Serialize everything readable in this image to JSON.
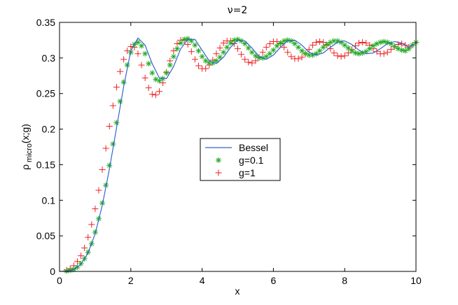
{
  "chart_data": {
    "type": "line",
    "title": "ν=2",
    "xlabel": "x",
    "ylabel": "ρ",
    "ylabel_sub": "micro",
    "ylabel_suffix": "(x;g)",
    "xlim": [
      0,
      10
    ],
    "ylim": [
      0,
      0.35
    ],
    "xticks": [
      0,
      2,
      4,
      6,
      8,
      10
    ],
    "xtick_labels": [
      "0",
      "2",
      "4",
      "6",
      "8",
      "10"
    ],
    "yticks": [
      0,
      0.05,
      0.1,
      0.15,
      0.2,
      0.25,
      0.3,
      0.35
    ],
    "ytick_labels": [
      "0",
      "0.05",
      "0.1",
      "0.15",
      "0.2",
      "0.25",
      "0.3",
      "0.35"
    ],
    "grid": false,
    "legend_position": "center",
    "series": [
      {
        "name": "Bessel",
        "style": "line",
        "color": "#3366cc",
        "x": [
          0.0,
          0.2,
          0.4,
          0.6,
          0.8,
          1.0,
          1.2,
          1.4,
          1.6,
          1.8,
          2.0,
          2.2,
          2.4,
          2.6,
          2.8,
          3.0,
          3.2,
          3.4,
          3.6,
          3.8,
          4.0,
          4.2,
          4.4,
          4.6,
          4.8,
          5.0,
          5.2,
          5.4,
          5.6,
          5.8,
          6.0,
          6.2,
          6.4,
          6.6,
          6.8,
          7.0,
          7.2,
          7.4,
          7.6,
          7.8,
          8.0,
          8.2,
          8.4,
          8.6,
          8.8,
          9.0,
          9.2,
          9.4,
          9.6,
          9.8,
          10.0
        ],
        "values": [
          0.0,
          0.0004,
          0.0025,
          0.01,
          0.026,
          0.053,
          0.093,
          0.144,
          0.202,
          0.26,
          0.31,
          0.328,
          0.318,
          0.292,
          0.272,
          0.271,
          0.288,
          0.313,
          0.326,
          0.326,
          0.311,
          0.296,
          0.292,
          0.301,
          0.315,
          0.325,
          0.324,
          0.314,
          0.302,
          0.298,
          0.304,
          0.315,
          0.324,
          0.325,
          0.318,
          0.308,
          0.304,
          0.307,
          0.315,
          0.322,
          0.324,
          0.319,
          0.311,
          0.306,
          0.307,
          0.313,
          0.32,
          0.323,
          0.321,
          0.315,
          0.321
        ]
      },
      {
        "name": "g=0.1",
        "style": "marker-asterisk",
        "color": "#22aa22",
        "x": [
          0.2,
          0.3,
          0.4,
          0.5,
          0.6,
          0.7,
          0.8,
          0.9,
          1.0,
          1.1,
          1.2,
          1.3,
          1.4,
          1.5,
          1.6,
          1.7,
          1.8,
          1.9,
          2.0,
          2.1,
          2.2,
          2.3,
          2.4,
          2.5,
          2.6,
          2.7,
          2.8,
          2.9,
          3.0,
          3.1,
          3.2,
          3.3,
          3.4,
          3.5,
          3.6,
          3.7,
          3.8,
          3.9,
          4.0,
          4.1,
          4.2,
          4.3,
          4.4,
          4.5,
          4.6,
          4.7,
          4.8,
          4.9,
          5.0,
          5.1,
          5.2,
          5.3,
          5.4,
          5.5,
          5.6,
          5.7,
          5.8,
          5.9,
          6.0,
          6.1,
          6.2,
          6.3,
          6.4,
          6.5,
          6.6,
          6.7,
          6.8,
          6.9,
          7.0,
          7.1,
          7.2,
          7.3,
          7.4,
          7.5,
          7.6,
          7.7,
          7.8,
          7.9,
          8.0,
          8.1,
          8.2,
          8.3,
          8.4,
          8.5,
          8.6,
          8.7,
          8.8,
          8.9,
          9.0,
          9.1,
          9.2,
          9.3,
          9.4,
          9.5,
          9.6,
          9.7,
          9.8,
          9.9,
          10.0
        ],
        "values": [
          0.0006,
          0.0015,
          0.003,
          0.006,
          0.011,
          0.018,
          0.027,
          0.039,
          0.055,
          0.074,
          0.096,
          0.121,
          0.149,
          0.179,
          0.209,
          0.239,
          0.266,
          0.29,
          0.308,
          0.319,
          0.322,
          0.317,
          0.306,
          0.292,
          0.279,
          0.27,
          0.268,
          0.271,
          0.279,
          0.29,
          0.302,
          0.313,
          0.321,
          0.326,
          0.327,
          0.324,
          0.318,
          0.31,
          0.302,
          0.296,
          0.293,
          0.293,
          0.296,
          0.301,
          0.308,
          0.315,
          0.321,
          0.325,
          0.326,
          0.324,
          0.32,
          0.314,
          0.308,
          0.303,
          0.3,
          0.3,
          0.302,
          0.306,
          0.311,
          0.317,
          0.321,
          0.324,
          0.325,
          0.324,
          0.32,
          0.315,
          0.31,
          0.306,
          0.304,
          0.304,
          0.306,
          0.31,
          0.315,
          0.319,
          0.322,
          0.324,
          0.324,
          0.322,
          0.318,
          0.314,
          0.31,
          0.307,
          0.306,
          0.307,
          0.309,
          0.313,
          0.317,
          0.32,
          0.322,
          0.323,
          0.322,
          0.32,
          0.316,
          0.313,
          0.311,
          0.31,
          0.313,
          0.318,
          0.322
        ]
      },
      {
        "name": "g=1",
        "style": "marker-plus",
        "color": "#ee2222",
        "x": [
          0.2,
          0.3,
          0.4,
          0.5,
          0.6,
          0.7,
          0.8,
          0.9,
          1.0,
          1.1,
          1.2,
          1.3,
          1.4,
          1.5,
          1.6,
          1.7,
          1.8,
          1.9,
          2.0,
          2.1,
          2.2,
          2.3,
          2.4,
          2.5,
          2.6,
          2.7,
          2.8,
          2.9,
          3.0,
          3.1,
          3.2,
          3.3,
          3.4,
          3.5,
          3.6,
          3.7,
          3.8,
          3.9,
          4.0,
          4.1,
          4.2,
          4.3,
          4.4,
          4.5,
          4.6,
          4.7,
          4.8,
          4.9,
          5.0,
          5.1,
          5.2,
          5.3,
          5.4,
          5.5,
          5.6,
          5.7,
          5.8,
          5.9,
          6.0,
          6.1,
          6.2,
          6.3,
          6.4,
          6.5,
          6.6,
          6.7,
          6.8,
          6.9,
          7.0,
          7.1,
          7.2,
          7.3,
          7.4,
          7.5,
          7.6,
          7.7,
          7.8,
          7.9,
          8.0,
          8.1,
          8.2,
          8.3,
          8.4,
          8.5,
          8.6,
          8.7,
          8.8,
          8.9,
          9.0,
          9.1,
          9.2,
          9.3,
          9.4,
          9.5,
          9.6,
          9.7,
          9.8,
          9.9,
          10.0
        ],
        "values": [
          0.002,
          0.004,
          0.008,
          0.014,
          0.022,
          0.033,
          0.048,
          0.066,
          0.088,
          0.114,
          0.143,
          0.173,
          0.204,
          0.233,
          0.259,
          0.281,
          0.298,
          0.31,
          0.316,
          0.315,
          0.306,
          0.29,
          0.272,
          0.258,
          0.249,
          0.248,
          0.253,
          0.265,
          0.28,
          0.296,
          0.31,
          0.32,
          0.325,
          0.325,
          0.319,
          0.309,
          0.298,
          0.289,
          0.285,
          0.285,
          0.29,
          0.297,
          0.306,
          0.314,
          0.321,
          0.324,
          0.324,
          0.32,
          0.313,
          0.305,
          0.298,
          0.294,
          0.293,
          0.296,
          0.301,
          0.308,
          0.315,
          0.32,
          0.323,
          0.323,
          0.32,
          0.315,
          0.308,
          0.302,
          0.299,
          0.299,
          0.301,
          0.306,
          0.312,
          0.318,
          0.322,
          0.323,
          0.322,
          0.318,
          0.313,
          0.307,
          0.303,
          0.302,
          0.303,
          0.307,
          0.312,
          0.317,
          0.321,
          0.322,
          0.321,
          0.318,
          0.313,
          0.309,
          0.306,
          0.306,
          0.308,
          0.312,
          0.316,
          0.319,
          0.32,
          0.318,
          0.315,
          0.318,
          0.322
        ]
      }
    ]
  }
}
